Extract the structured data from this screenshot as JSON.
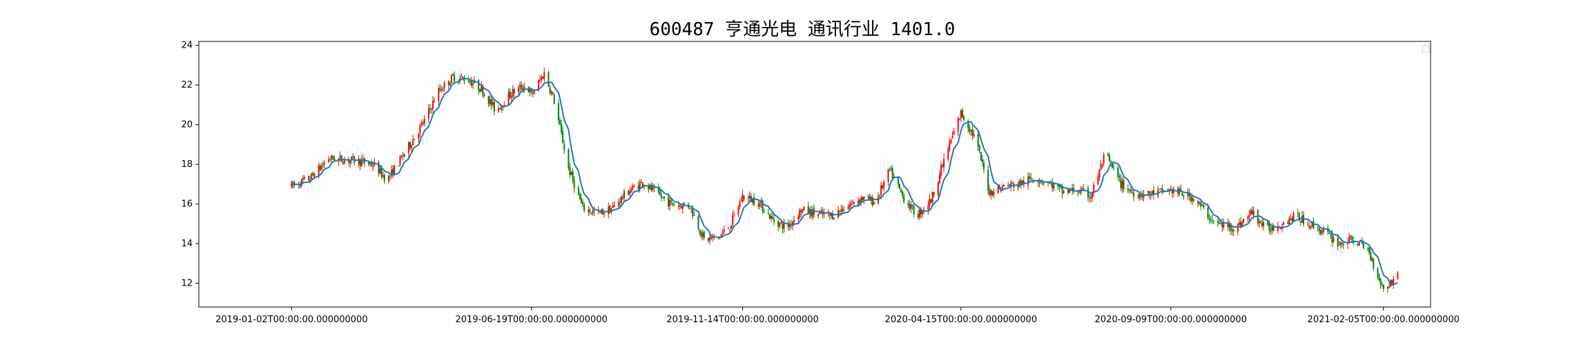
{
  "chart_data": {
    "type": "candlestick",
    "title": "600487 亨通光电 通讯行业 1401.0",
    "xlabel": "",
    "ylabel": "",
    "ylim": [
      10.8,
      24.2
    ],
    "xlim": [
      "2018-10-29",
      "2021-03-10"
    ],
    "yticks": [
      12,
      14,
      16,
      18,
      20,
      22,
      24
    ],
    "xticks": [
      {
        "date": "2019-01-02",
        "label": "2019-01-02T00:00:00.000000000"
      },
      {
        "date": "2019-06-19",
        "label": "2019-06-19T00:00:00.000000000"
      },
      {
        "date": "2019-11-14",
        "label": "2019-11-14T00:00:00.000000000"
      },
      {
        "date": "2020-04-15",
        "label": "2020-04-15T00:00:00.000000000"
      },
      {
        "date": "2020-09-09",
        "label": "2020-09-09T00:00:00.000000000"
      },
      {
        "date": "2021-02-05",
        "label": "2021-02-05T00:00:00.000000000"
      }
    ],
    "legend": {
      "location": "upper-right",
      "entries": []
    },
    "up_color": "#ff0000",
    "down_color": "#008000",
    "ma_color": "#1f77b4",
    "price_path": [
      [
        "2019-01-02",
        16.9
      ],
      [
        "2019-01-15",
        17.3
      ],
      [
        "2019-01-28",
        18.3
      ],
      [
        "2019-02-15",
        18.2
      ],
      [
        "2019-02-28",
        18.0
      ],
      [
        "2019-03-10",
        17.2
      ],
      [
        "2019-03-25",
        18.9
      ],
      [
        "2019-04-05",
        20.2
      ],
      [
        "2019-04-15",
        21.7
      ],
      [
        "2019-04-25",
        22.4
      ],
      [
        "2019-05-05",
        22.3
      ],
      [
        "2019-05-15",
        21.8
      ],
      [
        "2019-05-25",
        20.7
      ],
      [
        "2019-06-05",
        21.6
      ],
      [
        "2019-06-15",
        22.0
      ],
      [
        "2019-06-19",
        21.5
      ],
      [
        "2019-06-28",
        22.6
      ],
      [
        "2019-07-05",
        21.2
      ],
      [
        "2019-07-15",
        17.8
      ],
      [
        "2019-07-25",
        15.8
      ],
      [
        "2019-08-05",
        15.5
      ],
      [
        "2019-08-15",
        15.8
      ],
      [
        "2019-08-25",
        16.6
      ],
      [
        "2019-09-05",
        17.1
      ],
      [
        "2019-09-15",
        16.5
      ],
      [
        "2019-09-25",
        16.0
      ],
      [
        "2019-10-08",
        15.9
      ],
      [
        "2019-10-18",
        14.2
      ],
      [
        "2019-10-28",
        14.3
      ],
      [
        "2019-11-05",
        14.9
      ],
      [
        "2019-11-14",
        16.4
      ],
      [
        "2019-11-25",
        16.1
      ],
      [
        "2019-12-05",
        15.2
      ],
      [
        "2019-12-15",
        14.8
      ],
      [
        "2019-12-25",
        15.7
      ],
      [
        "2020-01-05",
        15.5
      ],
      [
        "2020-01-15",
        15.4
      ],
      [
        "2020-01-22",
        15.7
      ],
      [
        "2020-02-05",
        16.3
      ],
      [
        "2020-02-15",
        16.1
      ],
      [
        "2020-02-25",
        17.7
      ],
      [
        "2020-03-05",
        16.4
      ],
      [
        "2020-03-15",
        15.4
      ],
      [
        "2020-03-25",
        16.2
      ],
      [
        "2020-04-05",
        18.6
      ],
      [
        "2020-04-15",
        20.6
      ],
      [
        "2020-04-25",
        19.3
      ],
      [
        "2020-05-05",
        16.6
      ],
      [
        "2020-05-15",
        16.9
      ],
      [
        "2020-05-25",
        17.0
      ],
      [
        "2020-06-05",
        17.3
      ],
      [
        "2020-06-15",
        17.1
      ],
      [
        "2020-06-25",
        16.6
      ],
      [
        "2020-07-05",
        16.7
      ],
      [
        "2020-07-15",
        16.4
      ],
      [
        "2020-07-25",
        18.5
      ],
      [
        "2020-08-05",
        17.0
      ],
      [
        "2020-08-15",
        16.5
      ],
      [
        "2020-08-25",
        16.5
      ],
      [
        "2020-09-09",
        16.7
      ],
      [
        "2020-09-25",
        16.3
      ],
      [
        "2020-10-10",
        15.0
      ],
      [
        "2020-10-25",
        14.8
      ],
      [
        "2020-11-05",
        15.6
      ],
      [
        "2020-11-15",
        14.7
      ],
      [
        "2020-11-25",
        15.0
      ],
      [
        "2020-12-05",
        15.4
      ],
      [
        "2020-12-15",
        15.0
      ],
      [
        "2020-12-25",
        14.6
      ],
      [
        "2021-01-05",
        14.0
      ],
      [
        "2021-01-15",
        14.2
      ],
      [
        "2021-01-25",
        13.7
      ],
      [
        "2021-02-05",
        11.7
      ],
      [
        "2021-02-15",
        12.4
      ]
    ]
  }
}
